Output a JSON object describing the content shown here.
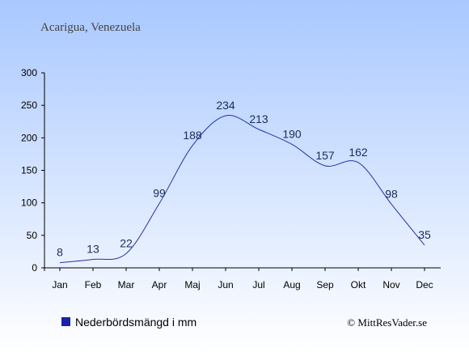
{
  "header": {
    "location": "Acarigua, Venezuela"
  },
  "legend": {
    "label": "Nederbördsmängd i mm"
  },
  "footer": {
    "credit": "© MittResVader.se"
  },
  "colors": {
    "line": "#2233aa",
    "legend_marker": "#1a22aa",
    "bg_top": "#a9c8ff",
    "bg_bottom": "#ffffff"
  },
  "chart_data": {
    "type": "line",
    "categories": [
      "Jan",
      "Feb",
      "Mar",
      "Apr",
      "Maj",
      "Jun",
      "Jul",
      "Aug",
      "Sep",
      "Okt",
      "Nov",
      "Dec"
    ],
    "series": [
      {
        "name": "Nederbördsmängd i mm",
        "values": [
          8,
          13,
          22,
          99,
          188,
          234,
          213,
          190,
          157,
          162,
          98,
          35
        ]
      }
    ],
    "ylim": [
      0,
      300
    ],
    "yticks": [
      0,
      50,
      100,
      150,
      200,
      250,
      300
    ],
    "grid": false,
    "legend_position": "bottom-left"
  }
}
